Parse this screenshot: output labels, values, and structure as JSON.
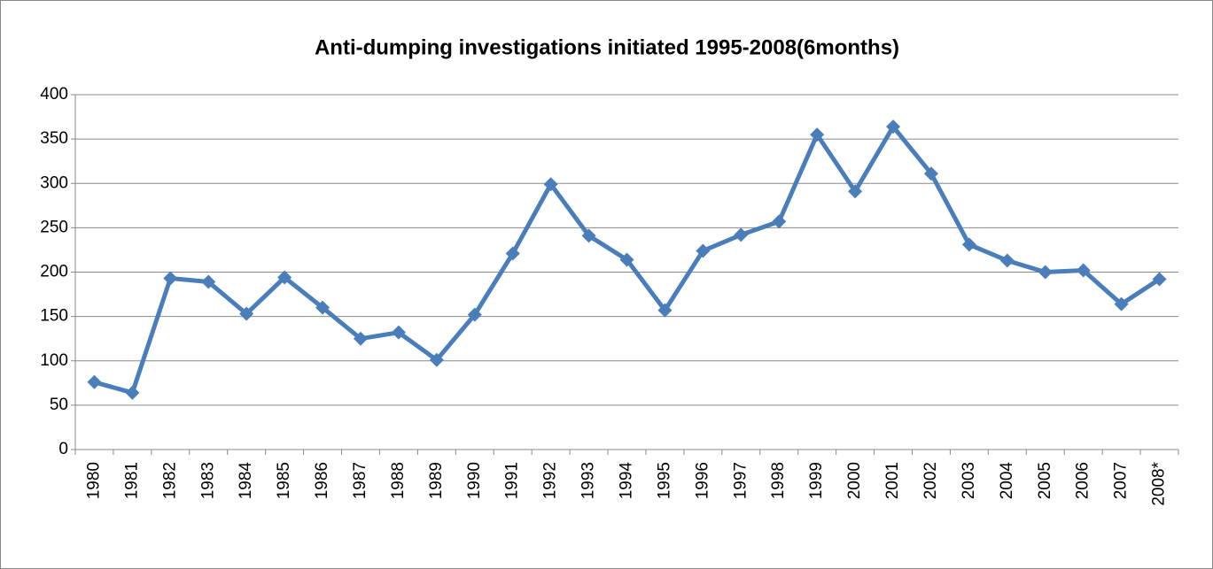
{
  "chart_data": {
    "type": "line",
    "title": "Anti-dumping investigations initiated 1995-2008(6months)",
    "categories": [
      "1980",
      "1981",
      "1982",
      "1983",
      "1984",
      "1985",
      "1986",
      "1987",
      "1988",
      "1989",
      "1990",
      "1991",
      "1992",
      "1993",
      "1994",
      "1995",
      "1996",
      "1997",
      "1998",
      "1999",
      "2000",
      "2001",
      "2002",
      "2003",
      "2004",
      "2005",
      "2006",
      "2007",
      "2008*"
    ],
    "values": [
      76,
      64,
      193,
      189,
      153,
      194,
      160,
      125,
      132,
      101,
      152,
      221,
      299,
      241,
      214,
      157,
      224,
      242,
      257,
      355,
      291,
      364,
      311,
      231,
      213,
      200,
      202,
      164,
      192
    ],
    "color": "#4a7ebb",
    "ylim": [
      0,
      400
    ],
    "yticks": [
      0,
      50,
      100,
      150,
      200,
      250,
      300,
      350,
      400
    ],
    "grid": true
  }
}
